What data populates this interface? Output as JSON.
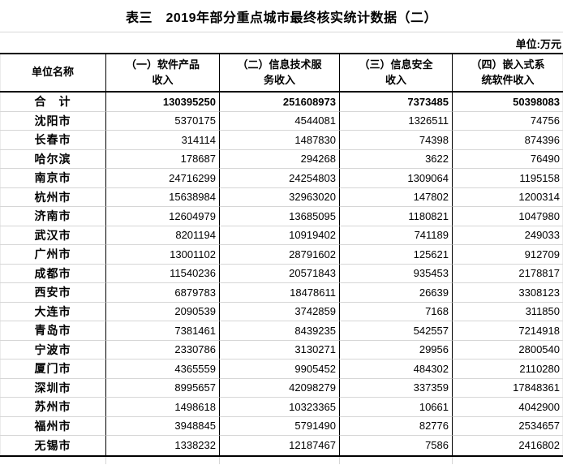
{
  "title": "表三　2019年部分重点城市最终核实统计数据（二）",
  "unit_label": "单位:万元",
  "colors": {
    "text": "#000000",
    "heavy_border": "#000000",
    "light_gridline": "#d6d6d6",
    "title_divider": "#d9d9d9",
    "background": "#ffffff"
  },
  "table": {
    "columns": [
      "单位名称",
      "（一）软件产品\n收入",
      "（二）信息技术服\n务收入",
      "（三）信息安全\n收入",
      "（四）嵌入式系\n统软件收入"
    ],
    "rows": [
      {
        "name": "合　计",
        "total": true,
        "values": [
          "130395250",
          "251608973",
          "7373485",
          "50398083"
        ]
      },
      {
        "name": "沈阳市",
        "total": false,
        "values": [
          "5370175",
          "4544081",
          "1326511",
          "74756"
        ]
      },
      {
        "name": "长春市",
        "total": false,
        "values": [
          "314114",
          "1487830",
          "74398",
          "874396"
        ]
      },
      {
        "name": "哈尔滨",
        "total": false,
        "values": [
          "178687",
          "294268",
          "3622",
          "76490"
        ]
      },
      {
        "name": "南京市",
        "total": false,
        "values": [
          "24716299",
          "24254803",
          "1309064",
          "1195158"
        ]
      },
      {
        "name": "杭州市",
        "total": false,
        "values": [
          "15638984",
          "32963020",
          "147802",
          "1200314"
        ]
      },
      {
        "name": "济南市",
        "total": false,
        "values": [
          "12604979",
          "13685095",
          "1180821",
          "1047980"
        ]
      },
      {
        "name": "武汉市",
        "total": false,
        "values": [
          "8201194",
          "10919402",
          "741189",
          "249033"
        ]
      },
      {
        "name": "广州市",
        "total": false,
        "values": [
          "13001102",
          "28791602",
          "125621",
          "912709"
        ]
      },
      {
        "name": "成都市",
        "total": false,
        "values": [
          "11540236",
          "20571843",
          "935453",
          "2178817"
        ]
      },
      {
        "name": "西安市",
        "total": false,
        "values": [
          "6879783",
          "18478611",
          "26639",
          "3308123"
        ]
      },
      {
        "name": "大连市",
        "total": false,
        "values": [
          "2090539",
          "3742859",
          "7168",
          "311850"
        ]
      },
      {
        "name": "青岛市",
        "total": false,
        "values": [
          "7381461",
          "8439235",
          "542557",
          "7214918"
        ]
      },
      {
        "name": "宁波市",
        "total": false,
        "values": [
          "2330786",
          "3130271",
          "29956",
          "2800540"
        ]
      },
      {
        "name": "厦门市",
        "total": false,
        "values": [
          "4365559",
          "9905452",
          "484302",
          "2110280"
        ]
      },
      {
        "name": "深圳市",
        "total": false,
        "values": [
          "8995657",
          "42098279",
          "337359",
          "17848361"
        ]
      },
      {
        "name": "苏州市",
        "total": false,
        "values": [
          "1498618",
          "10323365",
          "10661",
          "4042900"
        ]
      },
      {
        "name": "福州市",
        "total": false,
        "values": [
          "3948845",
          "5791490",
          "82776",
          "2534657"
        ]
      },
      {
        "name": "无锡市",
        "total": false,
        "values": [
          "1338232",
          "12187467",
          "7586",
          "2416802"
        ]
      }
    ]
  }
}
